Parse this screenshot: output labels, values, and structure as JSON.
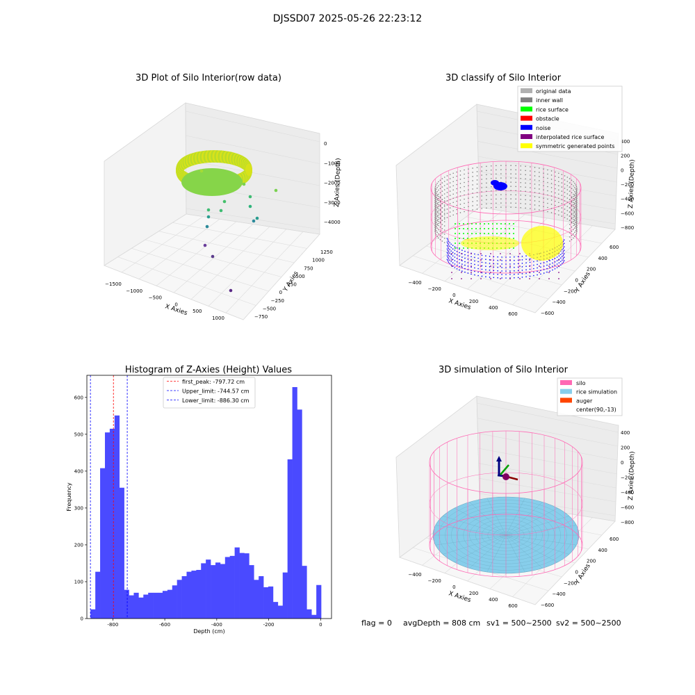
{
  "suptitle": "DJSSD07 2025-05-26 22:23:12",
  "footer": {
    "flag": "flag = 0",
    "avg": "avgDepth = 808 cm",
    "sv1": "sv1 = 500~2500",
    "sv2": "sv2 = 500~2500"
  },
  "colors": {
    "hist_bar": "#4a4aff",
    "silo": "#ff69b4",
    "rice_sim": "#87ceeb",
    "auger": "#ff4500",
    "inner_wall": "#808080",
    "rice_surface": "#00ff00",
    "obstacle": "#ff0000",
    "noise": "#0000ff",
    "interp": "#800080",
    "symmetric": "#ffff00",
    "original": "#b0b0b0"
  },
  "chart_data": [
    {
      "type": "scatter",
      "panel": "raw",
      "title": "3D Plot of Silo Interior(row data)",
      "xlabel": "X Axies",
      "ylabel": "Y Axies",
      "zlabel": "Z Axies (Depth)",
      "x_ticks": [
        "−1500",
        "−1000",
        "−500",
        "0",
        "500",
        "1000"
      ],
      "y_ticks": [
        "−750",
        "−500",
        "−250",
        "0",
        "250",
        "500",
        "750",
        "1000",
        "1250"
      ],
      "z_ticks": [
        "−4000",
        "−3000",
        "−2000",
        "−1000",
        "0"
      ]
    },
    {
      "type": "scatter",
      "panel": "classify",
      "title": "3D classify of Silo Interior",
      "xlabel": "X Axies",
      "ylabel": "Y Axies",
      "zlabel": "Z Axies (Depth)",
      "x_ticks": [
        "−400",
        "−200",
        "0",
        "200",
        "400",
        "600"
      ],
      "y_ticks": [
        "−600",
        "−400",
        "−200",
        "0",
        "200",
        "400",
        "600"
      ],
      "z_ticks": [
        "−800",
        "−600",
        "−400",
        "−200",
        "0",
        "200",
        "400"
      ],
      "legend": [
        "original data",
        "inner wall",
        "rice surface",
        "obstacle",
        "noise",
        "interpolated rice surface",
        "symmetric generated points"
      ],
      "legend_position": "upper-right"
    },
    {
      "type": "bar",
      "panel": "histogram",
      "title": "Histogram of Z-Axies (Height) Values",
      "xlabel": "Depth (cm)",
      "ylabel": "Frequency",
      "xlim": [
        -900,
        42
      ],
      "ylim": [
        0,
        660
      ],
      "x_ticks": [
        -800,
        -600,
        -400,
        -200,
        0
      ],
      "y_ticks": [
        0,
        100,
        200,
        300,
        400,
        500,
        600
      ],
      "bin_start": -886,
      "bin_width": 18.5,
      "values": [
        25,
        127,
        408,
        505,
        515,
        551,
        355,
        78,
        63,
        70,
        57,
        65,
        70,
        70,
        70,
        75,
        78,
        90,
        105,
        115,
        127,
        130,
        132,
        150,
        160,
        145,
        152,
        148,
        167,
        170,
        193,
        178,
        177,
        145,
        105,
        115,
        85,
        87,
        45,
        35,
        125,
        432,
        628,
        567,
        143,
        25,
        10,
        91
      ],
      "vlines": [
        {
          "label": "first_peak: -797.72 cm",
          "x": -797.72,
          "color": "#ff0000"
        },
        {
          "label": "Upper_limit: -744.57 cm",
          "x": -744.57,
          "color": "#0000ff"
        },
        {
          "label": "Lower_limit: -886.30 cm",
          "x": -886.3,
          "color": "#0000ff"
        }
      ]
    },
    {
      "type": "scatter",
      "panel": "simulation",
      "title": "3D simulation of Silo Interior",
      "xlabel": "X Axies",
      "ylabel": "Y Axies",
      "zlabel": "Z Axies (Depth)",
      "x_ticks": [
        "−400",
        "−200",
        "0",
        "200",
        "400",
        "600"
      ],
      "y_ticks": [
        "−600",
        "−400",
        "−200",
        "0",
        "200",
        "400",
        "600"
      ],
      "z_ticks": [
        "−800",
        "−600",
        "−400",
        "−200",
        "0",
        "200",
        "400"
      ],
      "legend": [
        "silo",
        "rice simulation",
        "auger",
        "center(90,-13)"
      ],
      "legend_position": "upper-right"
    }
  ]
}
